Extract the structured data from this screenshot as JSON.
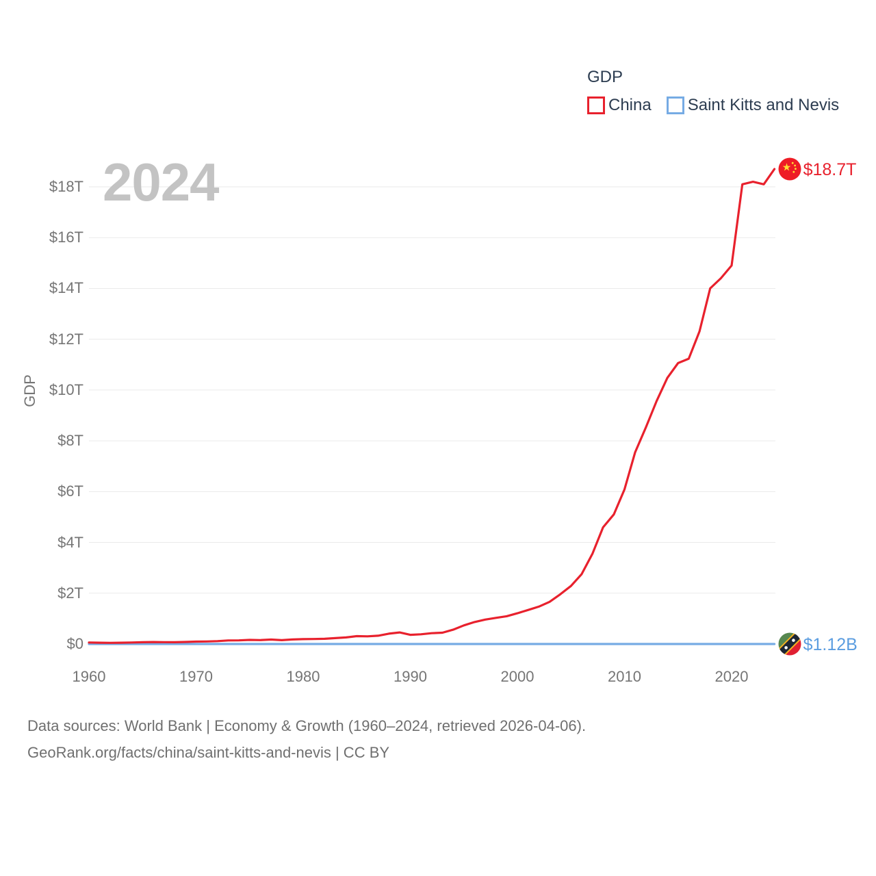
{
  "legend": {
    "title": "GDP",
    "items": [
      {
        "label": "China",
        "color": "#e8212d"
      },
      {
        "label": "Saint Kitts and Nevis",
        "color": "#76abe4"
      }
    ]
  },
  "watermark": "2024",
  "end_labels": [
    {
      "series": "China",
      "text": "$18.7T",
      "color": "#e8212d",
      "badge": "china-flag-badge",
      "label_id": "china-end-label"
    },
    {
      "series": "Saint Kitts and Nevis",
      "text": "$1.12B",
      "color": "#5b9de0",
      "badge": "skn-flag-badge",
      "label_id": "skn-end-label"
    }
  ],
  "footer": {
    "line1": "Data sources: World Bank | Economy & Growth (1960–2024, retrieved 2026-04-06).",
    "line2": "GeoRank.org/facts/china/saint-kitts-and-nevis | CC BY"
  },
  "chart_data": {
    "type": "line",
    "title": "GDP",
    "xlabel": "",
    "ylabel": "GDP",
    "grid": "horizontal",
    "legend_position": "top-right",
    "x_ticks": [
      1960,
      1970,
      1980,
      1990,
      2000,
      2010,
      2020
    ],
    "y_ticks": [
      "$0",
      "$2T",
      "$4T",
      "$6T",
      "$8T",
      "$10T",
      "$12T",
      "$14T",
      "$16T",
      "$18T"
    ],
    "y_tick_step_trillions": 2,
    "ylim_trillions": [
      0,
      18
    ],
    "xlim": [
      1960,
      2024
    ],
    "x": [
      1960,
      1961,
      1962,
      1963,
      1964,
      1965,
      1966,
      1967,
      1968,
      1969,
      1970,
      1971,
      1972,
      1973,
      1974,
      1975,
      1976,
      1977,
      1978,
      1979,
      1980,
      1981,
      1982,
      1983,
      1984,
      1985,
      1986,
      1987,
      1988,
      1989,
      1990,
      1991,
      1992,
      1993,
      1994,
      1995,
      1996,
      1997,
      1998,
      1999,
      2000,
      2001,
      2002,
      2003,
      2004,
      2005,
      2006,
      2007,
      2008,
      2009,
      2010,
      2011,
      2012,
      2013,
      2014,
      2015,
      2016,
      2017,
      2018,
      2019,
      2020,
      2021,
      2022,
      2023,
      2024
    ],
    "series": [
      {
        "name": "China",
        "color": "#e8212d",
        "unit": "trillion USD",
        "end_value_label": "$18.7T",
        "values": [
          0.06,
          0.05,
          0.047,
          0.051,
          0.06,
          0.07,
          0.077,
          0.073,
          0.071,
          0.08,
          0.093,
          0.1,
          0.114,
          0.139,
          0.144,
          0.163,
          0.154,
          0.175,
          0.15,
          0.178,
          0.191,
          0.196,
          0.205,
          0.231,
          0.26,
          0.31,
          0.301,
          0.327,
          0.407,
          0.456,
          0.361,
          0.383,
          0.427,
          0.445,
          0.564,
          0.734,
          0.864,
          0.962,
          1.029,
          1.094,
          1.211,
          1.339,
          1.471,
          1.66,
          1.955,
          2.286,
          2.752,
          3.55,
          4.594,
          5.102,
          6.087,
          7.552,
          8.532,
          9.57,
          10.476,
          11.062,
          11.233,
          12.31,
          14.0,
          14.4,
          14.9,
          18.1,
          18.2,
          18.1,
          18.7
        ]
      },
      {
        "name": "Saint Kitts and Nevis",
        "color": "#76abe4",
        "unit": "billion USD",
        "end_value_label": "$1.12B",
        "values": [
          0.012,
          0.013,
          0.014,
          0.015,
          0.016,
          0.017,
          0.018,
          0.019,
          0.02,
          0.022,
          0.024,
          0.026,
          0.029,
          0.033,
          0.039,
          0.043,
          0.046,
          0.051,
          0.058,
          0.065,
          0.068,
          0.075,
          0.082,
          0.086,
          0.095,
          0.103,
          0.117,
          0.131,
          0.148,
          0.159,
          0.16,
          0.168,
          0.18,
          0.192,
          0.204,
          0.218,
          0.232,
          0.249,
          0.263,
          0.285,
          0.329,
          0.345,
          0.359,
          0.372,
          0.412,
          0.457,
          0.514,
          0.55,
          0.572,
          0.567,
          0.69,
          0.716,
          0.734,
          0.766,
          0.82,
          0.876,
          0.917,
          0.947,
          1.011,
          1.053,
          0.927,
          0.98,
          1.068,
          1.077,
          1.12
        ]
      }
    ]
  }
}
